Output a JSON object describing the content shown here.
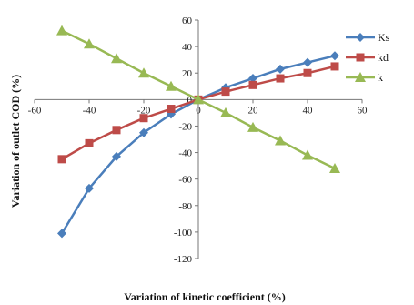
{
  "chart_data": {
    "type": "line",
    "title": "",
    "xlabel": "Variation of kinetic coefficient (%)",
    "ylabel": "Variation  of outlet COD (%)",
    "xlim": [
      -60,
      60
    ],
    "ylim": [
      -120,
      60
    ],
    "x_ticks": [
      -60,
      -40,
      -20,
      0,
      20,
      40,
      60
    ],
    "y_ticks": [
      -120,
      -100,
      -80,
      -60,
      -40,
      -20,
      0,
      20,
      40,
      60
    ],
    "grid": false,
    "legend_position": "right",
    "x": [
      -50,
      -40,
      -30,
      -20,
      -10,
      0,
      10,
      20,
      30,
      40,
      50
    ],
    "series": [
      {
        "name": "Ks",
        "color": "#4a7ebb",
        "marker": "diamond",
        "values": [
          -101,
          -67,
          -43,
          -25,
          -11,
          0,
          9,
          16,
          23,
          28,
          33
        ]
      },
      {
        "name": "kd",
        "color": "#be4b48",
        "marker": "square",
        "values": [
          -45,
          -33,
          -23,
          -14,
          -7,
          0,
          6,
          11,
          16,
          20,
          25
        ]
      },
      {
        "name": "k",
        "color": "#98b954",
        "marker": "triangle",
        "values": [
          52,
          42,
          31,
          20,
          10,
          0,
          -10,
          -21,
          -31,
          -42,
          -52
        ]
      }
    ]
  }
}
